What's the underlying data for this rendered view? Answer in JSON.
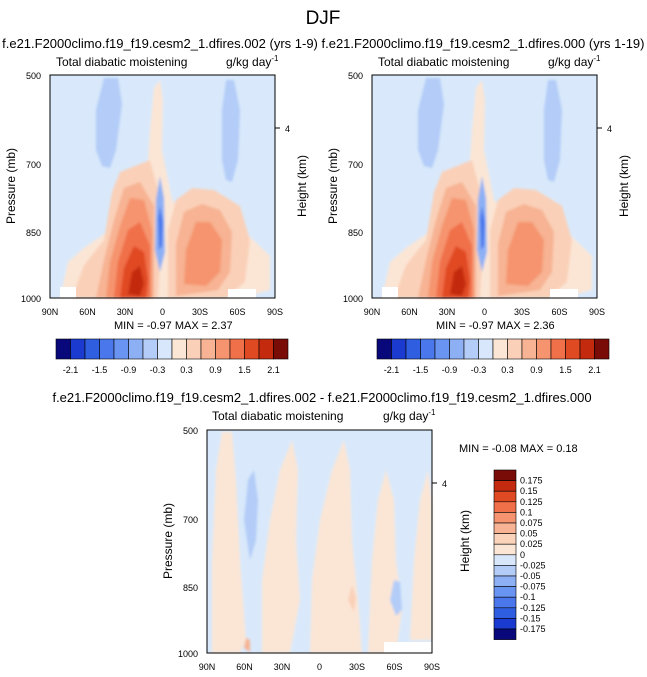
{
  "figure": {
    "title": "DJF"
  },
  "colors": {
    "page_background": "#ffffff",
    "panel_background": "#d9e9fb"
  },
  "chart_data": [
    {
      "type": "heatmap",
      "title": "f.e21.F2000climo.f19_f19.cesm2_1.dfires.002 (yrs 1-9)",
      "subtitle_left": "Total diabatic moistening",
      "units": "g/kg day",
      "units_exponent": "-1",
      "ylabel": "Pressure (mb)",
      "ylabel_right": "Height (km)",
      "x_ticks": [
        "90N",
        "60N",
        "30N",
        "0",
        "30S",
        "60S",
        "90S"
      ],
      "y_ticks": [
        "500",
        "700",
        "850",
        "1000"
      ],
      "right_ticks": [
        "4"
      ],
      "stats": {
        "min": "-0.97",
        "max": "2.37"
      },
      "grid": false,
      "field_features": [
        {
          "lat": 20,
          "p": 930,
          "value": 2.1
        },
        {
          "lat": 26,
          "p": 880,
          "value": 1.5
        },
        {
          "lat": 14,
          "p": 800,
          "value": 0.9
        },
        {
          "lat": -32,
          "p": 860,
          "value": 0.9
        },
        {
          "lat": 0,
          "p": 850,
          "value": -0.6
        },
        {
          "lat": 35,
          "p": 540,
          "value": -0.3
        },
        {
          "lat": -50,
          "p": 540,
          "value": -0.3
        }
      ]
    },
    {
      "type": "heatmap",
      "title": "f.e21.F2000climo.f19_f19.cesm2_1.dfires.000 (yrs 1-19)",
      "subtitle_left": "Total diabatic moistening",
      "units": "g/kg day",
      "units_exponent": "-1",
      "ylabel": "Pressure (mb)",
      "ylabel_right": "Height (km)",
      "x_ticks": [
        "90N",
        "60N",
        "30N",
        "0",
        "30S",
        "60S",
        "90S"
      ],
      "y_ticks": [
        "500",
        "700",
        "850",
        "1000"
      ],
      "right_ticks": [
        "4"
      ],
      "stats": {
        "min": "-0.97",
        "max": "2.36"
      },
      "grid": false,
      "field_features": [
        {
          "lat": 20,
          "p": 930,
          "value": 2.1
        },
        {
          "lat": 26,
          "p": 880,
          "value": 1.5
        },
        {
          "lat": 14,
          "p": 800,
          "value": 0.9
        },
        {
          "lat": -32,
          "p": 860,
          "value": 0.9
        },
        {
          "lat": 0,
          "p": 850,
          "value": -0.6
        },
        {
          "lat": 35,
          "p": 540,
          "value": -0.3
        },
        {
          "lat": -50,
          "p": 540,
          "value": -0.3
        }
      ]
    },
    {
      "type": "heatmap",
      "title": "f.e21.F2000climo.f19_f19.cesm2_1.dfires.002 - f.e21.F2000climo.f19_f19.cesm2_1.dfires.000",
      "subtitle_left": "Total diabatic moistening",
      "units": "g/kg day",
      "units_exponent": "-1",
      "ylabel": "Pressure (mb)",
      "ylabel_right": "Height (km)",
      "x_ticks": [
        "90N",
        "60N",
        "30N",
        "0",
        "30S",
        "60S",
        "90S"
      ],
      "y_ticks": [
        "500",
        "700",
        "850",
        "1000"
      ],
      "right_ticks": [
        "4"
      ],
      "stats": {
        "min": "-0.08",
        "max": "0.18"
      },
      "grid": false
    }
  ],
  "colorbar_abs": {
    "orientation": "horizontal",
    "colors": [
      "#08087a",
      "#1a3ad0",
      "#2f5fe0",
      "#4a78ec",
      "#6a94f2",
      "#8db0f5",
      "#b3ccf8",
      "#d8e7fb",
      "#fbe6d6",
      "#fad0b8",
      "#f7b393",
      "#f5946e",
      "#f0704a",
      "#e04a22",
      "#c32a0e",
      "#7a0c08"
    ],
    "labels": [
      "-2.1",
      "-1.5",
      "-0.9",
      "-0.3",
      "0.3",
      "0.9",
      "1.5",
      "2.1"
    ]
  },
  "colorbar_diff": {
    "orientation": "vertical",
    "colors": [
      "#7a0c08",
      "#c32a0e",
      "#e04a22",
      "#f0704a",
      "#f5946e",
      "#f7b393",
      "#fbd3bb",
      "#fbe6d6",
      "#d8e7fb",
      "#b3ccf8",
      "#8db0f5",
      "#6a94f2",
      "#4a78ec",
      "#2f5fe0",
      "#1a3ad0",
      "#08087a"
    ],
    "labels": [
      "0.175",
      "0.15",
      "0.125",
      "0.1",
      "0.075",
      "0.05",
      "0.025",
      "0",
      "-0.025",
      "-0.05",
      "-0.075",
      "-0.1",
      "-0.125",
      "-0.15",
      "-0.175"
    ]
  }
}
